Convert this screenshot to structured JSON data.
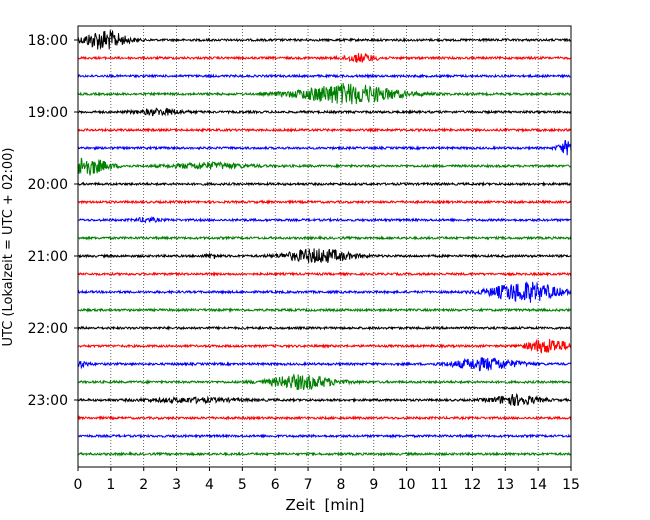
{
  "chart_data": {
    "type": "line",
    "title": "",
    "xlabel": "Zeit  [min]",
    "ylabel": "UTC (Lokalzeit = UTC + 02:00)",
    "xlim": [
      0,
      15
    ],
    "x_ticks": [
      "0",
      "1",
      "2",
      "3",
      "4",
      "5",
      "6",
      "7",
      "8",
      "9",
      "10",
      "11",
      "12",
      "13",
      "14",
      "15"
    ],
    "y_tick_labels": [
      "18:00",
      "19:00",
      "20:00",
      "21:00",
      "22:00",
      "23:00"
    ],
    "grid": "vertical dotted",
    "series_colors": [
      "#000000",
      "#ff0000",
      "#0000ff",
      "#008000"
    ],
    "traces_per_hour": 4,
    "trace_minutes": 15,
    "traces": [
      {
        "start": "18:00",
        "color": "#000000",
        "events": [
          {
            "t": 0.8,
            "amp": 10,
            "dur": 0.9
          }
        ]
      },
      {
        "start": "18:15",
        "color": "#ff0000",
        "events": [
          {
            "t": 8.6,
            "amp": 4,
            "dur": 0.7
          }
        ]
      },
      {
        "start": "18:30",
        "color": "#0000ff",
        "events": []
      },
      {
        "start": "18:45",
        "color": "#008000",
        "events": [
          {
            "t": 8.2,
            "amp": 10,
            "dur": 2.2
          }
        ]
      },
      {
        "start": "19:00",
        "color": "#000000",
        "events": [
          {
            "t": 2.5,
            "amp": 3,
            "dur": 1.0
          }
        ]
      },
      {
        "start": "19:15",
        "color": "#ff0000",
        "events": []
      },
      {
        "start": "19:30",
        "color": "#0000ff",
        "events": [
          {
            "t": 14.9,
            "amp": 7,
            "dur": 0.4
          }
        ]
      },
      {
        "start": "19:45",
        "color": "#008000",
        "events": [
          {
            "t": 0.2,
            "amp": 9,
            "dur": 1.0
          },
          {
            "t": 4.0,
            "amp": 3,
            "dur": 1.6
          }
        ]
      },
      {
        "start": "20:00",
        "color": "#000000",
        "events": []
      },
      {
        "start": "20:15",
        "color": "#ff0000",
        "events": []
      },
      {
        "start": "20:30",
        "color": "#0000ff",
        "events": [
          {
            "t": 2.1,
            "amp": 2,
            "dur": 0.5
          }
        ]
      },
      {
        "start": "20:45",
        "color": "#008000",
        "events": []
      },
      {
        "start": "21:00",
        "color": "#000000",
        "events": [
          {
            "t": 7.3,
            "amp": 7,
            "dur": 1.4
          },
          {
            "t": 4.1,
            "amp": 2,
            "dur": 0.3
          }
        ]
      },
      {
        "start": "21:15",
        "color": "#ff0000",
        "events": []
      },
      {
        "start": "21:30",
        "color": "#0000ff",
        "events": [
          {
            "t": 13.6,
            "amp": 10,
            "dur": 1.5
          }
        ]
      },
      {
        "start": "21:45",
        "color": "#008000",
        "events": []
      },
      {
        "start": "22:00",
        "color": "#000000",
        "events": []
      },
      {
        "start": "22:15",
        "color": "#ff0000",
        "events": [
          {
            "t": 14.3,
            "amp": 7,
            "dur": 0.9
          }
        ]
      },
      {
        "start": "22:30",
        "color": "#0000ff",
        "events": [
          {
            "t": 12.4,
            "amp": 6,
            "dur": 1.4
          },
          {
            "t": 0.1,
            "amp": 3,
            "dur": 0.3
          }
        ]
      },
      {
        "start": "22:45",
        "color": "#008000",
        "events": [
          {
            "t": 6.8,
            "amp": 7,
            "dur": 1.4
          }
        ]
      },
      {
        "start": "23:00",
        "color": "#000000",
        "events": [
          {
            "t": 13.3,
            "amp": 5,
            "dur": 1.0
          },
          {
            "t": 3.5,
            "amp": 2,
            "dur": 2.0
          }
        ]
      },
      {
        "start": "23:15",
        "color": "#ff0000",
        "events": []
      },
      {
        "start": "23:30",
        "color": "#0000ff",
        "events": []
      },
      {
        "start": "23:45",
        "color": "#008000",
        "events": []
      }
    ]
  }
}
